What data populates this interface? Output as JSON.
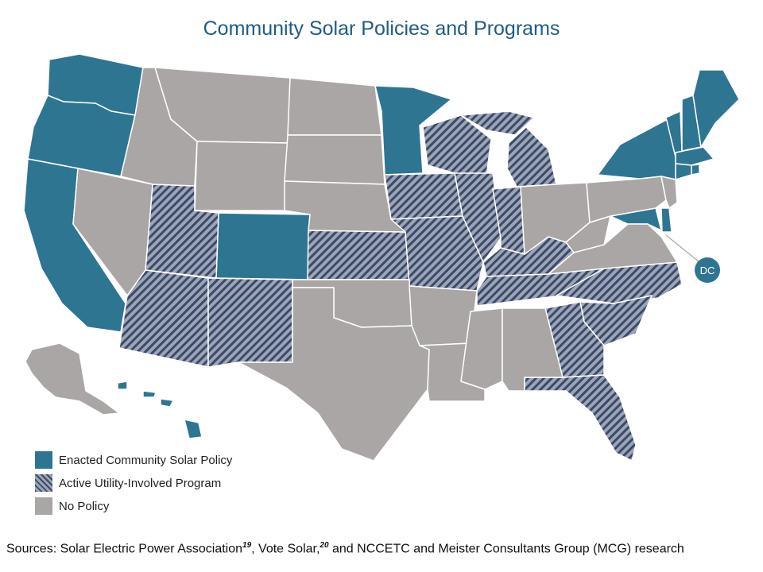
{
  "title": "Community Solar Policies and Programs",
  "colors": {
    "enacted": "#2e7591",
    "active_base": "#9da4b5",
    "active_stripe": "#3a4a6b",
    "no_policy": "#aaa6a6",
    "border": "#ffffff",
    "title": "#1f5b85"
  },
  "legend": [
    {
      "key": "enacted",
      "label": "Enacted Community Solar Policy"
    },
    {
      "key": "active",
      "label": "Active Utility-Involved Program"
    },
    {
      "key": "none",
      "label": "No Policy"
    }
  ],
  "dc_callout": "DC",
  "sources": {
    "prefix": "Sources: Solar Electric Power Association",
    "ref1": "19",
    "middle": ", Vote Solar,",
    "ref2": "20",
    "suffix": " and NCCETC and Meister Consultants Group (MCG) research"
  }
}
